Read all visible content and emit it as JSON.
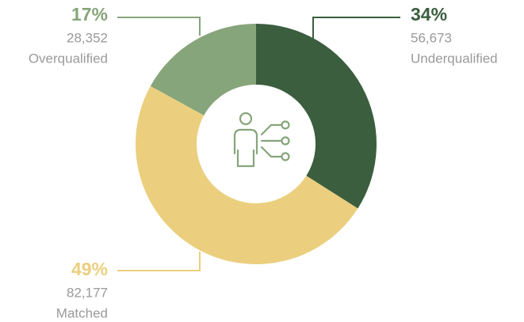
{
  "chart_data": {
    "type": "pie",
    "donut": true,
    "categories": [
      "Underqualified",
      "Matched",
      "Overqualified"
    ],
    "values": [
      34,
      49,
      17
    ],
    "value_labels": [
      "34%",
      "49%",
      "17%"
    ],
    "counts": [
      56673,
      82177,
      28352
    ],
    "count_labels": [
      "56,673",
      "82,177",
      "28,352"
    ],
    "colors": [
      "#3b5e3e",
      "#ebcf7e",
      "#86a57a"
    ]
  }
}
